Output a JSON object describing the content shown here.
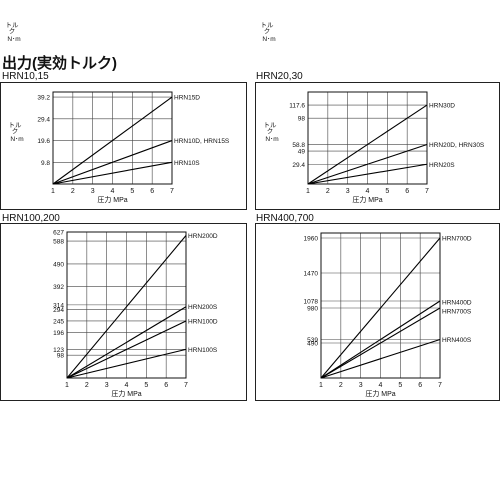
{
  "page_title": "出力(実効トルク)",
  "x_axis_label": "圧力 MPa",
  "y_axis_label_1": "トル\nク",
  "y_axis_label_2": "N･m",
  "chart_data": [
    {
      "type": "line",
      "title": "HRN10,15",
      "xlabel": "圧力 MPa",
      "ylabel": "トルク N･m",
      "xlim": [
        1,
        7
      ],
      "ylim": [
        0,
        41.5
      ],
      "x_ticks": [
        1,
        2,
        3,
        4,
        5,
        6,
        7
      ],
      "y_ticks": [
        "9.8",
        "19.6",
        "29.4",
        "39.2"
      ],
      "y_tick_values": [
        9.8,
        19.6,
        29.4,
        39.2
      ],
      "grid": true,
      "series": [
        {
          "name": "HRN15D",
          "x": [
            1,
            7
          ],
          "y": [
            0,
            39.2
          ]
        },
        {
          "name": "HRN10D, HRN15S",
          "x": [
            1,
            7
          ],
          "y": [
            0,
            19.6
          ]
        },
        {
          "name": "HRN10S",
          "x": [
            1,
            7
          ],
          "y": [
            0,
            9.8
          ]
        }
      ]
    },
    {
      "type": "line",
      "title": "HRN20,30",
      "xlabel": "圧力 MPa",
      "ylabel": "トルク N･m",
      "xlim": [
        1,
        7
      ],
      "ylim": [
        0,
        137
      ],
      "x_ticks": [
        1,
        2,
        3,
        4,
        5,
        6,
        7
      ],
      "y_ticks": [
        "29.4",
        "49",
        "58.8",
        "98",
        "117.6"
      ],
      "y_tick_values": [
        29.4,
        49,
        58.8,
        98,
        117.6
      ],
      "grid": true,
      "series": [
        {
          "name": "HRN30D",
          "x": [
            1,
            7
          ],
          "y": [
            0,
            117.6
          ]
        },
        {
          "name": "HRN20D, HRN30S",
          "x": [
            1,
            7
          ],
          "y": [
            0,
            58.8
          ]
        },
        {
          "name": "HRN20S",
          "x": [
            1,
            7
          ],
          "y": [
            0,
            29.4
          ]
        }
      ]
    },
    {
      "type": "line",
      "title": "HRN100,200",
      "xlabel": "圧力 MPa",
      "ylabel": "トルク N･m",
      "xlim": [
        1,
        7
      ],
      "ylim": [
        0,
        627
      ],
      "x_ticks": [
        1,
        2,
        3,
        4,
        5,
        6,
        7
      ],
      "y_ticks": [
        "98",
        "123",
        "196",
        "245",
        "294",
        "314",
        "392",
        "490",
        "588",
        "627"
      ],
      "y_tick_values": [
        98,
        123,
        196,
        245,
        294,
        314,
        392,
        490,
        588,
        627
      ],
      "grid": true,
      "series": [
        {
          "name": "HRN200D",
          "x": [
            1,
            7
          ],
          "y": [
            0,
            612
          ]
        },
        {
          "name": "HRN200S",
          "x": [
            1,
            7
          ],
          "y": [
            0,
            306
          ]
        },
        {
          "name": "HRN100D",
          "x": [
            1,
            7
          ],
          "y": [
            0,
            245
          ]
        },
        {
          "name": "HRN100S",
          "x": [
            1,
            7
          ],
          "y": [
            0,
            123
          ]
        }
      ]
    },
    {
      "type": "line",
      "title": "HRN400,700",
      "xlabel": "圧力 MPa",
      "ylabel": "トルク N･m",
      "xlim": [
        1,
        7
      ],
      "ylim": [
        0,
        2030
      ],
      "x_ticks": [
        1,
        2,
        3,
        4,
        5,
        6,
        7
      ],
      "y_ticks": [
        "490",
        "539",
        "980",
        "1078",
        "1470",
        "1960"
      ],
      "y_tick_values": [
        490,
        539,
        980,
        1078,
        1470,
        1960
      ],
      "grid": true,
      "series": [
        {
          "name": "HRN700D",
          "x": [
            1,
            7
          ],
          "y": [
            0,
            1960
          ]
        },
        {
          "name": "HRN400D",
          "x": [
            1,
            7
          ],
          "y": [
            0,
            1078
          ]
        },
        {
          "name": "HRN700S",
          "x": [
            1,
            7
          ],
          "y": [
            0,
            980
          ]
        },
        {
          "name": "HRN400S",
          "x": [
            1,
            7
          ],
          "y": [
            0,
            539
          ]
        }
      ]
    }
  ]
}
